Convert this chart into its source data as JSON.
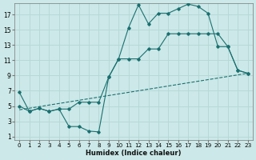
{
  "bg_color": "#cce8e8",
  "grid_color": "#b8d8d8",
  "line_color": "#1a7070",
  "xlabel": "Humidex (Indice chaleur)",
  "xlim": [
    -0.5,
    23.5
  ],
  "ylim": [
    0.5,
    18.5
  ],
  "xticks": [
    0,
    1,
    2,
    3,
    4,
    5,
    6,
    7,
    8,
    9,
    10,
    11,
    12,
    13,
    14,
    15,
    16,
    17,
    18,
    19,
    20,
    21,
    22,
    23
  ],
  "yticks": [
    1,
    3,
    5,
    7,
    9,
    11,
    13,
    15,
    17
  ],
  "line1_x": [
    0,
    1,
    2,
    3,
    4,
    5,
    6,
    7,
    8,
    9,
    10,
    11,
    12,
    13,
    14,
    15,
    16,
    17,
    18,
    19,
    20,
    21,
    22,
    23
  ],
  "line1_y": [
    6.8,
    4.3,
    4.7,
    4.3,
    4.6,
    2.3,
    2.3,
    1.7,
    1.6,
    8.8,
    11.2,
    15.3,
    18.3,
    15.8,
    17.2,
    17.2,
    17.8,
    18.4,
    18.1,
    17.2,
    12.8,
    12.8,
    9.7,
    9.3
  ],
  "line2_x": [
    0,
    1,
    2,
    3,
    4,
    5,
    6,
    7,
    8,
    9,
    10,
    11,
    12,
    13,
    14,
    15,
    16,
    17,
    18,
    19,
    20,
    21,
    22,
    23
  ],
  "line2_y": [
    5.0,
    4.3,
    4.7,
    4.3,
    4.6,
    4.6,
    5.5,
    5.5,
    5.5,
    8.8,
    11.2,
    11.2,
    11.2,
    12.5,
    12.5,
    14.5,
    14.5,
    14.5,
    14.5,
    14.5,
    14.5,
    12.8,
    9.7,
    9.3
  ],
  "line3_x": [
    0,
    23
  ],
  "line3_y": [
    4.5,
    9.3
  ]
}
